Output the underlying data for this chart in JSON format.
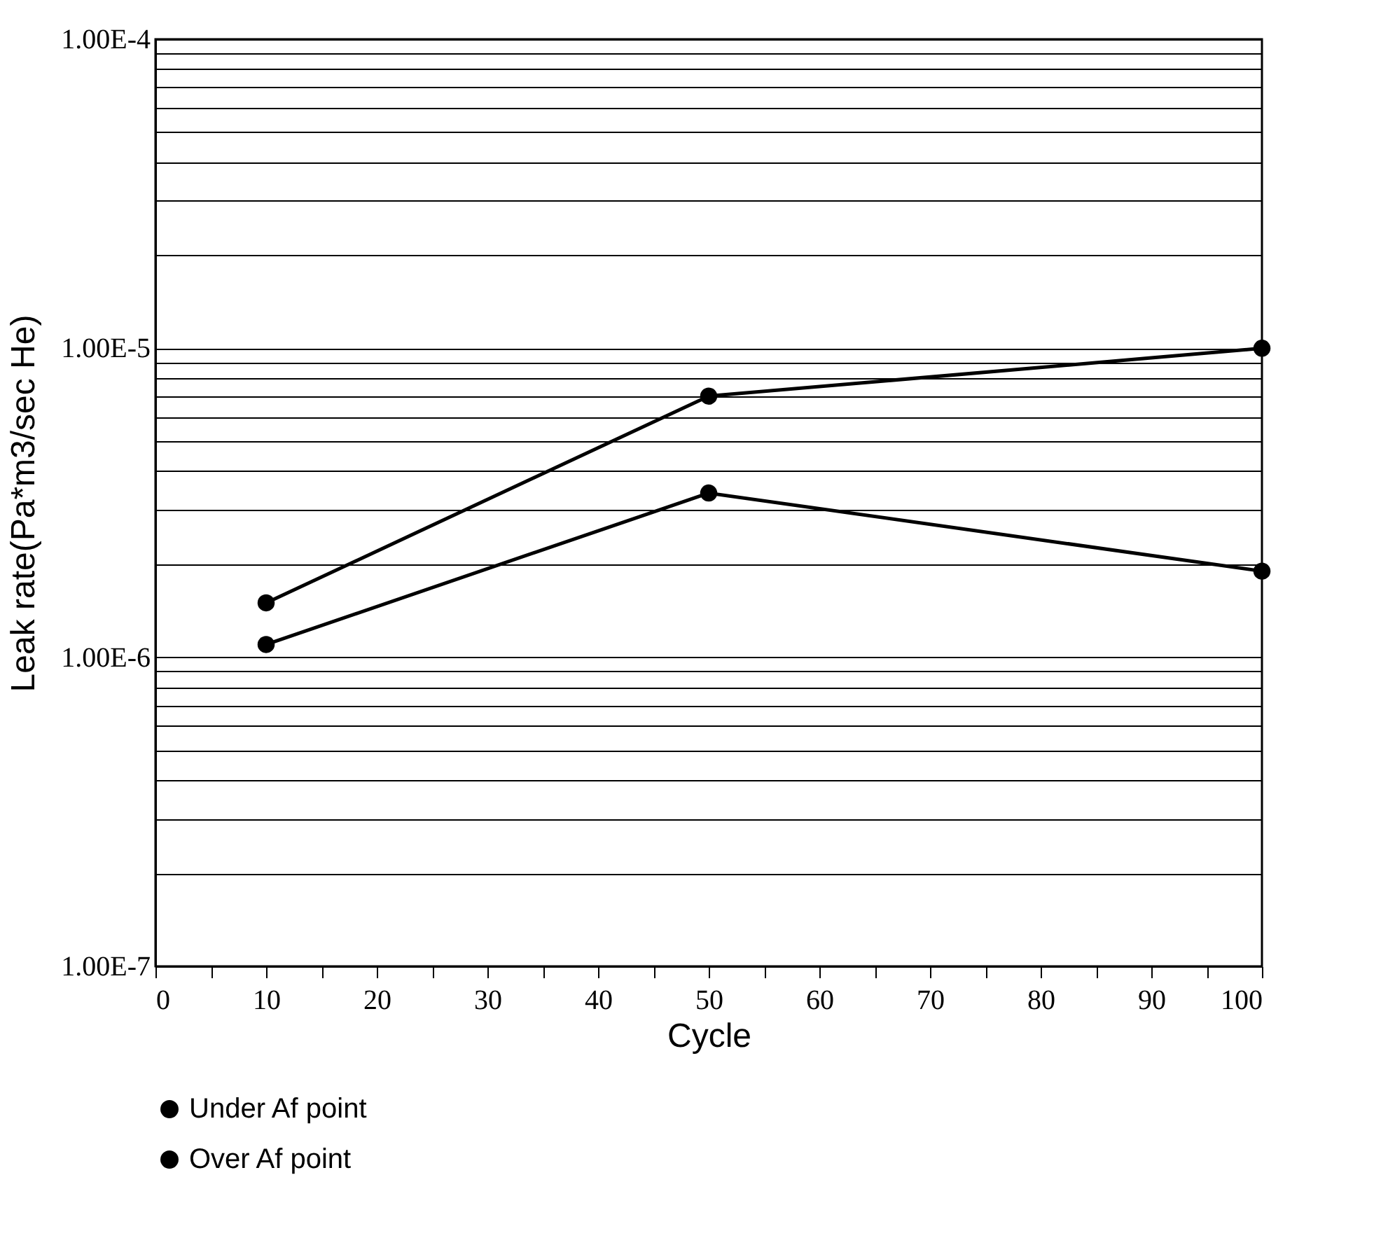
{
  "chart_data": {
    "type": "line",
    "xlabel": "Cycle",
    "ylabel": "Leak rate(Pa*m3/sec He)",
    "x": [
      10,
      50,
      100
    ],
    "series": [
      {
        "name": "Under Af point",
        "color": "#000000",
        "values": [
          1.5e-06,
          7e-06,
          1e-05
        ]
      },
      {
        "name": "Over Af point",
        "color": "#000000",
        "values": [
          1.1e-06,
          3.4e-06,
          1.9e-06
        ]
      }
    ],
    "log": "y",
    "xlim": [
      0,
      100
    ],
    "ylim": [
      1e-07,
      0.0001
    ],
    "xticks": [
      0,
      {
        "value": 5,
        "label": null
      },
      10,
      {
        "value": 15,
        "label": null
      },
      20,
      {
        "value": 25,
        "label": null
      },
      30,
      {
        "value": 35,
        "label": null
      },
      40,
      {
        "value": 45,
        "label": null
      },
      50,
      {
        "value": 55,
        "label": null
      },
      60,
      {
        "value": 65,
        "label": null
      },
      70,
      {
        "value": 75,
        "label": null
      },
      80,
      {
        "value": 85,
        "label": null
      },
      90,
      {
        "value": 95,
        "label": null
      },
      100
    ],
    "yticks": [
      {
        "value": 1e-07,
        "label": "1.00E-7"
      },
      {
        "value": 2e-07,
        "label": null
      },
      {
        "value": 3e-07,
        "label": null
      },
      {
        "value": 4e-07,
        "label": null
      },
      {
        "value": 5e-07,
        "label": null
      },
      {
        "value": 6e-07,
        "label": null
      },
      {
        "value": 7e-07,
        "label": null
      },
      {
        "value": 8e-07,
        "label": null
      },
      {
        "value": 9e-07,
        "label": null
      },
      {
        "value": 1e-06,
        "label": "1.00E-6"
      },
      {
        "value": 2e-06,
        "label": null
      },
      {
        "value": 3e-06,
        "label": null
      },
      {
        "value": 4e-06,
        "label": null
      },
      {
        "value": 5e-06,
        "label": null
      },
      {
        "value": 6e-06,
        "label": null
      },
      {
        "value": 7e-06,
        "label": null
      },
      {
        "value": 8e-06,
        "label": null
      },
      {
        "value": 9e-06,
        "label": null
      },
      {
        "value": 1e-05,
        "label": "1.00E-5"
      },
      {
        "value": 2e-05,
        "label": null
      },
      {
        "value": 3e-05,
        "label": null
      },
      {
        "value": 4e-05,
        "label": null
      },
      {
        "value": 5e-05,
        "label": null
      },
      {
        "value": 6e-05,
        "label": null
      },
      {
        "value": 7e-05,
        "label": null
      },
      {
        "value": 8e-05,
        "label": null
      },
      {
        "value": 9e-05,
        "label": null
      },
      {
        "value": 0.0001,
        "label": "1.00E-4"
      }
    ],
    "grid": "y",
    "legend": "bottom",
    "marker": "circle",
    "line_style": "solid"
  }
}
